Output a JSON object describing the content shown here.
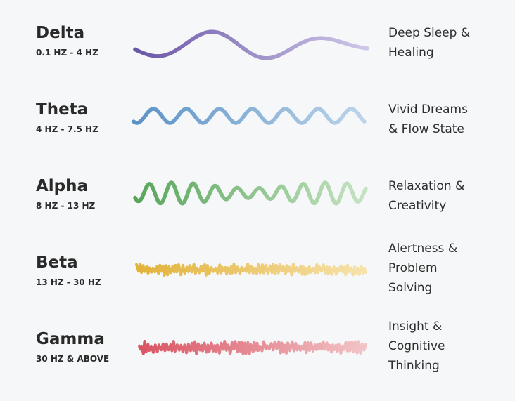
{
  "bands": [
    {
      "name": "Delta",
      "range": "0.1 HZ - 4 HZ",
      "effect": [
        "Deep Sleep &",
        "Healing"
      ],
      "color_start": "#6a56a8",
      "color_end": "#cfc8e8",
      "wave_icon": "slow-wave-icon"
    },
    {
      "name": "Theta",
      "range": "4 HZ - 7.5 HZ",
      "effect": [
        "Vivid Dreams",
        "& Flow State"
      ],
      "color_start": "#5b92c6",
      "color_end": "#bcd4ea",
      "wave_icon": "theta-wave-icon"
    },
    {
      "name": "Alpha",
      "range": "8 HZ - 13 HZ",
      "effect": [
        "Relaxation &",
        "Creativity"
      ],
      "color_start": "#58a55a",
      "color_end": "#c6e3c3",
      "wave_icon": "alpha-wave-icon"
    },
    {
      "name": "Beta",
      "range": "13 HZ - 30 HZ",
      "effect": [
        "Alertness &",
        "Problem",
        "Solving"
      ],
      "color_start": "#e2b23a",
      "color_end": "#f6e2ab",
      "wave_icon": "beta-wave-icon"
    },
    {
      "name": "Gamma",
      "range": "30 HZ & ABOVE",
      "effect": [
        "Insight &",
        "Cognitive",
        "Thinking"
      ],
      "color_start": "#d95462",
      "color_end": "#f2c4c7",
      "wave_icon": "gamma-wave-icon"
    }
  ]
}
